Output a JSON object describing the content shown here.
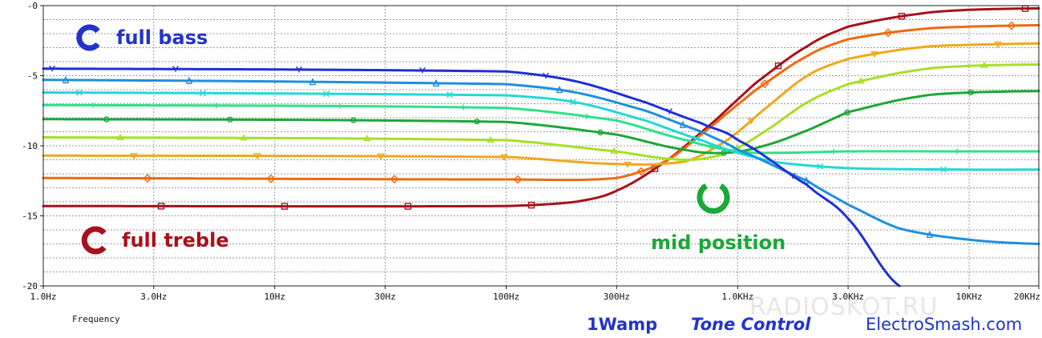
{
  "chart_data": {
    "type": "line",
    "x_scale": "log",
    "xlim": [
      1,
      20000
    ],
    "ylim": [
      -20,
      0
    ],
    "grid": true,
    "xlabel": "Frequency",
    "ylabel": "",
    "x_ticks": [
      {
        "value": 1,
        "label": "1.0Hz"
      },
      {
        "value": 3,
        "label": "3.0Hz"
      },
      {
        "value": 10,
        "label": "10Hz"
      },
      {
        "value": 30,
        "label": "30Hz"
      },
      {
        "value": 100,
        "label": "100Hz"
      },
      {
        "value": 300,
        "label": "300Hz"
      },
      {
        "value": 1000,
        "label": "1.0KHz"
      },
      {
        "value": 3000,
        "label": "3.0KHz"
      },
      {
        "value": 10000,
        "label": "10KHz"
      },
      {
        "value": 20000,
        "label": "20KHz"
      }
    ],
    "y_ticks": [
      {
        "value": 0,
        "label": "-0"
      },
      {
        "value": -5,
        "label": "-5"
      },
      {
        "value": -10,
        "label": "-10"
      },
      {
        "value": -15,
        "label": "-15"
      },
      {
        "value": -20,
        "label": "-20"
      }
    ],
    "series": [
      {
        "marker": "Y",
        "color": "#1f2fd6",
        "x": [
          1,
          100,
          200,
          400,
          700,
          1000,
          2000,
          3000,
          5000
        ],
        "y": [
          -4.5,
          -4.7,
          -5.4,
          -6.9,
          -8.4,
          -9.6,
          -12.8,
          -15.2,
          -20
        ]
      },
      {
        "marker": "triangle-down-tick",
        "color": "#1f8fe0",
        "x": [
          1,
          100,
          200,
          400,
          700,
          1000,
          2000,
          3000,
          5000,
          10000,
          20000
        ],
        "y": [
          -5.3,
          -5.6,
          -6.2,
          -7.5,
          -9.0,
          -10.3,
          -12.5,
          -14.2,
          -15.9,
          -16.7,
          -17.0
        ]
      },
      {
        "marker": "x",
        "color": "#22d8d8",
        "x": [
          1,
          100,
          200,
          400,
          700,
          1000,
          1500,
          3000,
          10000,
          20000
        ],
        "y": [
          -6.2,
          -6.4,
          -6.9,
          -8.2,
          -9.6,
          -10.5,
          -11.2,
          -11.6,
          -11.7,
          -11.7
        ]
      },
      {
        "marker": "plus",
        "color": "#2ee28a",
        "x": [
          1,
          100,
          300,
          600,
          1000,
          1500,
          3000,
          10000,
          20000
        ],
        "y": [
          -7.1,
          -7.3,
          -8.2,
          -9.6,
          -10.4,
          -10.5,
          -10.4,
          -10.4,
          -10.4
        ]
      },
      {
        "marker": "circle",
        "color": "#1aa838",
        "x": [
          1,
          100,
          300,
          600,
          900,
          1300,
          2000,
          3000,
          6000,
          10000,
          20000
        ],
        "y": [
          -8.1,
          -8.3,
          -9.2,
          -10.3,
          -10.5,
          -10.0,
          -8.9,
          -7.6,
          -6.5,
          -6.2,
          -6.1
        ]
      },
      {
        "marker": "triangle-up",
        "color": "#a6e024",
        "x": [
          1,
          100,
          300,
          600,
          900,
          1300,
          2000,
          3000,
          6000,
          10000,
          20000
        ],
        "y": [
          -9.4,
          -9.6,
          -10.4,
          -11.0,
          -10.5,
          -9.0,
          -6.9,
          -5.6,
          -4.6,
          -4.3,
          -4.2
        ]
      },
      {
        "marker": "triangle-down",
        "color": "#f2a81a",
        "x": [
          1,
          100,
          300,
          600,
          900,
          1300,
          2000,
          3000,
          6000,
          10000,
          20000
        ],
        "y": [
          -10.7,
          -10.8,
          -11.3,
          -11.1,
          -9.6,
          -7.4,
          -5.0,
          -3.8,
          -3.0,
          -2.8,
          -2.7
        ]
      },
      {
        "marker": "diamond",
        "color": "#ee6a10",
        "x": [
          1,
          100,
          300,
          500,
          800,
          1200,
          2000,
          3000,
          6000,
          10000,
          20000
        ],
        "y": [
          -12.3,
          -12.4,
          -12.3,
          -11.0,
          -8.4,
          -6.0,
          -3.6,
          -2.4,
          -1.7,
          -1.5,
          -1.4
        ]
      },
      {
        "marker": "square",
        "color": "#a8111b",
        "x": [
          1,
          100,
          200,
          300,
          500,
          800,
          1200,
          2000,
          3000,
          6000,
          10000,
          20000
        ],
        "y": [
          -14.3,
          -14.3,
          -14.0,
          -13.2,
          -11.0,
          -8.2,
          -5.5,
          -2.9,
          -1.5,
          -0.6,
          -0.3,
          -0.2
        ]
      }
    ]
  },
  "annotations": {
    "full_bass": "full bass",
    "full_treble": "full treble",
    "mid_position": "mid position"
  },
  "footer": {
    "brand": "1Wamp",
    "title": "Tone Control",
    "site": "ElectroSmash.com",
    "watermark": "RADIOSKOT.RU"
  },
  "colors": {
    "bass": "#2233cc",
    "treble": "#a8111b",
    "mid": "#1aa838"
  }
}
